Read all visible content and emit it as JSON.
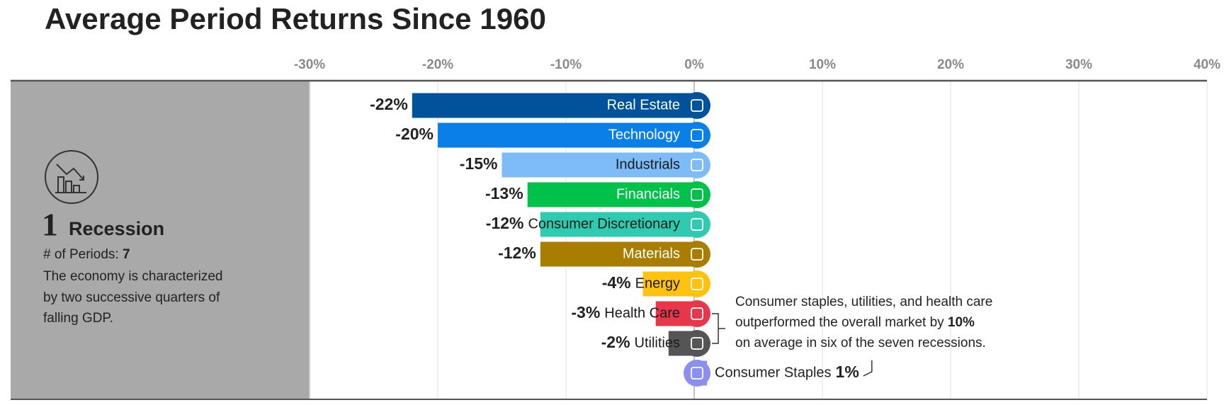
{
  "chart_data": {
    "type": "bar",
    "title": "Average Period Returns Since 1960",
    "categories": [
      "Real Estate",
      "Technology",
      "Industrials",
      "Financials",
      "Consumer Discretionary",
      "Materials",
      "Energy",
      "Health Care",
      "Utilities",
      "Consumer Staples"
    ],
    "values": [
      -22,
      -20,
      -15,
      -13,
      -12,
      -12,
      -4,
      -3,
      -2,
      1
    ],
    "value_labels": [
      "-22%",
      "-20%",
      "-15%",
      "-13%",
      "-12%",
      "-12%",
      "-4%",
      "-3%",
      "-2%",
      "1%"
    ],
    "colors": [
      "#00539a",
      "#0a7fe8",
      "#7dbcf7",
      "#00c24a",
      "#2fcbb0",
      "#a87d00",
      "#ffc20e",
      "#e8364b",
      "#555555",
      "#8a8ff0"
    ],
    "xlim": [
      -30,
      40
    ],
    "xticks": [
      {
        "value": -30,
        "label": "-30%"
      },
      {
        "value": -20,
        "label": "-20%"
      },
      {
        "value": -10,
        "label": "-10%"
      },
      {
        "value": 0,
        "label": "0%"
      },
      {
        "value": 10,
        "label": "10%"
      },
      {
        "value": 20,
        "label": "20%"
      },
      {
        "value": 30,
        "label": "30%"
      },
      {
        "value": 40,
        "label": "40%"
      }
    ],
    "grid": true
  },
  "panel": {
    "number": "1",
    "name": "Recession",
    "periods_label": "# of Periods:",
    "periods": 7,
    "description": [
      "The economy is characterized",
      "by two successive quarters of",
      "falling GDP."
    ]
  },
  "annotation": {
    "line1": "Consumer staples, utilities, and health care",
    "line2": "outperformed the overall market by",
    "highlight": "10%",
    "line3": "on average in six of the seven recessions."
  }
}
